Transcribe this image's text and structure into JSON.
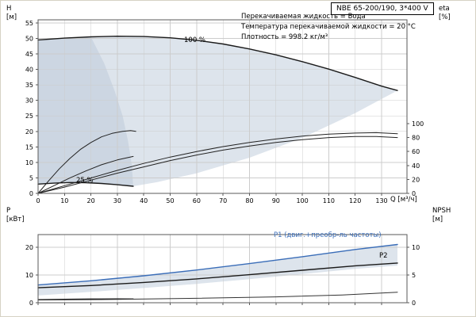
{
  "panel": {
    "bg": "#ffffff",
    "border_color": "#d6d2c4"
  },
  "title_box": {
    "label": "NBE 65-200/190, 3*400 V"
  },
  "annotations": {
    "line1": "Перекачиваемая жидкость = Вода",
    "line2": "Температура перекачиваемой жидкости = 20 °C",
    "line3": "Плотность = 998.2 кг/м³"
  },
  "axis_labels": {
    "h_symbol": "H",
    "h_unit": "[м]",
    "eta_symbol": "eta",
    "eta_unit": "[%]",
    "p_symbol": "P",
    "p_unit": "[кВт]",
    "npsh_symbol": "NPSH",
    "npsh_unit": "[м]"
  },
  "curve_labels": {
    "speed_100": "100 %",
    "speed_25": "25 %",
    "p1": "P1 (двиг.+преобр-ль частоты)",
    "p2": "P2"
  },
  "colors": {
    "envelope": "#dde4ec",
    "envelope_dark": "#ccd6e2",
    "curve": "#1a1a1a",
    "blue": "#3a6db8",
    "grid": "#cccccc",
    "frame": "#5a5a5a",
    "tick_text": "#000000"
  },
  "chart_data": [
    {
      "type": "line",
      "xlabel": "Q [м³/ч]",
      "ylabel": "H [м]",
      "y2label": "eta [%]",
      "xlim": [
        0,
        139.6
      ],
      "ylim": [
        0,
        56
      ],
      "x_ticks": [
        0,
        10,
        20,
        30,
        40,
        50,
        60,
        70,
        80,
        90,
        100,
        110,
        120,
        130
      ],
      "y_ticks": [
        0,
        5,
        10,
        15,
        20,
        25,
        30,
        35,
        40,
        45,
        50,
        55
      ],
      "y2_ticks": [
        0,
        20,
        40,
        60,
        80,
        100
      ],
      "series": [
        {
          "name": "operating-envelope",
          "kind": "area",
          "color": "#dde4ec",
          "axis": "y1",
          "points": [
            [
              0,
              49.5
            ],
            [
              10,
              50.1
            ],
            [
              20,
              50.5
            ],
            [
              30,
              50.7
            ],
            [
              40,
              50.6
            ],
            [
              50,
              50.2
            ],
            [
              60,
              49.4
            ],
            [
              70,
              48.2
            ],
            [
              80,
              46.6
            ],
            [
              90,
              44.7
            ],
            [
              100,
              42.5
            ],
            [
              110,
              40.1
            ],
            [
              120,
              37.4
            ],
            [
              130,
              34.6
            ],
            [
              136,
              33.2
            ],
            [
              120,
              25.9
            ],
            [
              100,
              17.9
            ],
            [
              80,
              11.5
            ],
            [
              60,
              6.5
            ],
            [
              45,
              3.6
            ],
            [
              36,
              2.3
            ],
            [
              30,
              2.8
            ],
            [
              24,
              3.2
            ],
            [
              16,
              3.5
            ],
            [
              8,
              3.4
            ],
            [
              0,
              3.0
            ]
          ]
        },
        {
          "name": "envelope-left-overlay",
          "kind": "area",
          "color": "#ccd6e2",
          "axis": "y1",
          "points": [
            [
              0,
              49.5
            ],
            [
              10,
              50.1
            ],
            [
              20,
              50.5
            ],
            [
              25,
              42
            ],
            [
              29,
              33
            ],
            [
              32,
              25
            ],
            [
              34,
              17
            ],
            [
              35.5,
              9
            ],
            [
              36,
              2.3
            ],
            [
              30,
              2.8
            ],
            [
              24,
              3.2
            ],
            [
              16,
              3.5
            ],
            [
              8,
              3.4
            ],
            [
              0,
              3.0
            ]
          ]
        },
        {
          "name": "speed-curve-100",
          "kind": "line",
          "color": "#1a1a1a",
          "width": 1.4,
          "axis": "y1",
          "points": [
            [
              0,
              49.5
            ],
            [
              10,
              50.1
            ],
            [
              20,
              50.5
            ],
            [
              30,
              50.7
            ],
            [
              40,
              50.6
            ],
            [
              50,
              50.2
            ],
            [
              60,
              49.4
            ],
            [
              70,
              48.2
            ],
            [
              80,
              46.6
            ],
            [
              90,
              44.7
            ],
            [
              100,
              42.5
            ],
            [
              110,
              40.1
            ],
            [
              120,
              37.4
            ],
            [
              130,
              34.6
            ],
            [
              136,
              33.2
            ]
          ]
        },
        {
          "name": "speed-curve-25",
          "kind": "line",
          "color": "#1a1a1a",
          "width": 1.4,
          "axis": "y1",
          "points": [
            [
              0,
              3.0
            ],
            [
              6,
              3.3
            ],
            [
              12,
              3.5
            ],
            [
              18,
              3.45
            ],
            [
              24,
              3.2
            ],
            [
              30,
              2.8
            ],
            [
              36,
              2.3
            ]
          ]
        },
        {
          "name": "eta-pump-curve",
          "kind": "line",
          "color": "#222222",
          "width": 1,
          "axis": "y2",
          "points": [
            [
              0,
              0
            ],
            [
              10,
              11
            ],
            [
              20,
              22
            ],
            [
              30,
              33
            ],
            [
              40,
              43
            ],
            [
              50,
              52
            ],
            [
              60,
              60
            ],
            [
              70,
              67
            ],
            [
              80,
              73
            ],
            [
              90,
              78
            ],
            [
              100,
              82
            ],
            [
              110,
              85
            ],
            [
              120,
              86.5
            ],
            [
              128,
              87
            ],
            [
              136,
              85.5
            ]
          ]
        },
        {
          "name": "eta-total-curve",
          "kind": "line",
          "color": "#222222",
          "width": 1,
          "axis": "y2",
          "points": [
            [
              0,
              0
            ],
            [
              10,
              9
            ],
            [
              20,
              19
            ],
            [
              30,
              29
            ],
            [
              40,
              38
            ],
            [
              50,
              47
            ],
            [
              60,
              55
            ],
            [
              70,
              62
            ],
            [
              80,
              68
            ],
            [
              90,
              73
            ],
            [
              100,
              77
            ],
            [
              110,
              80
            ],
            [
              120,
              81.5
            ],
            [
              128,
              81.5
            ],
            [
              136,
              80
            ]
          ]
        },
        {
          "name": "eta-arc-left",
          "kind": "line",
          "color": "#222222",
          "width": 1,
          "axis": "y2",
          "points": [
            [
              0,
              0
            ],
            [
              4,
              18
            ],
            [
              8,
              35
            ],
            [
              12,
              50
            ],
            [
              16,
              63
            ],
            [
              20,
              73
            ],
            [
              24,
              81
            ],
            [
              28,
              86
            ],
            [
              32,
              89
            ],
            [
              35,
              90
            ],
            [
              37,
              89
            ]
          ]
        },
        {
          "name": "eta-mid-left",
          "kind": "line",
          "color": "#222222",
          "width": 1,
          "axis": "y2",
          "points": [
            [
              0,
              0
            ],
            [
              6,
              11
            ],
            [
              12,
              22
            ],
            [
              18,
              32
            ],
            [
              24,
              41
            ],
            [
              30,
              48
            ],
            [
              36,
              53
            ]
          ]
        }
      ]
    },
    {
      "type": "line",
      "xlabel": "Q [м³/ч]",
      "ylabel": "P [кВт]",
      "y2label": "NPSH [м]",
      "xlim": [
        0,
        139.6
      ],
      "ylim": [
        0,
        24.57
      ],
      "x_ticks": [
        0,
        10,
        20,
        30,
        40,
        50,
        60,
        70,
        80,
        90,
        100,
        110,
        120,
        130
      ],
      "y_ticks": [
        0,
        10,
        20
      ],
      "y2_ticks": [
        0,
        5,
        10
      ],
      "series": [
        {
          "name": "power-band",
          "kind": "area",
          "color": "#dde4ec",
          "axis": "y1",
          "points": [
            [
              0,
              6.4
            ],
            [
              20,
              7.9
            ],
            [
              40,
              9.7
            ],
            [
              60,
              11.8
            ],
            [
              80,
              14.1
            ],
            [
              100,
              16.6
            ],
            [
              120,
              19.2
            ],
            [
              136,
              21.0
            ],
            [
              136,
              13.4
            ],
            [
              120,
              12.2
            ],
            [
              100,
              10.3
            ],
            [
              80,
              8.5
            ],
            [
              60,
              6.8
            ],
            [
              40,
              5.3
            ],
            [
              20,
              3.9
            ],
            [
              0,
              2.6
            ]
          ]
        },
        {
          "name": "p1-curve",
          "kind": "line",
          "color": "#3a6db8",
          "width": 1.4,
          "axis": "y1",
          "points": [
            [
              0,
              6.4
            ],
            [
              20,
              7.9
            ],
            [
              40,
              9.7
            ],
            [
              60,
              11.8
            ],
            [
              80,
              14.1
            ],
            [
              100,
              16.6
            ],
            [
              120,
              19.2
            ],
            [
              136,
              21.0
            ]
          ]
        },
        {
          "name": "p2-curve",
          "kind": "line",
          "color": "#1a1a1a",
          "width": 1.4,
          "axis": "y1",
          "points": [
            [
              0,
              5.4
            ],
            [
              20,
              6.2
            ],
            [
              40,
              7.3
            ],
            [
              60,
              8.6
            ],
            [
              80,
              10.1
            ],
            [
              100,
              11.7
            ],
            [
              120,
              13.3
            ],
            [
              136,
              14.3
            ]
          ]
        },
        {
          "name": "p-curve-25",
          "kind": "line",
          "color": "#1a1a1a",
          "width": 1.3,
          "axis": "y1",
          "points": [
            [
              0,
              1.1
            ],
            [
              10,
              1.25
            ],
            [
              20,
              1.35
            ],
            [
              30,
              1.4
            ],
            [
              36,
              1.35
            ]
          ]
        },
        {
          "name": "npsh-curve",
          "kind": "line",
          "color": "#333333",
          "width": 1,
          "axis": "y2",
          "points": [
            [
              0,
              0.5
            ],
            [
              30,
              0.6
            ],
            [
              60,
              0.8
            ],
            [
              90,
              1.05
            ],
            [
              115,
              1.4
            ],
            [
              136,
              1.9
            ]
          ]
        }
      ]
    }
  ]
}
